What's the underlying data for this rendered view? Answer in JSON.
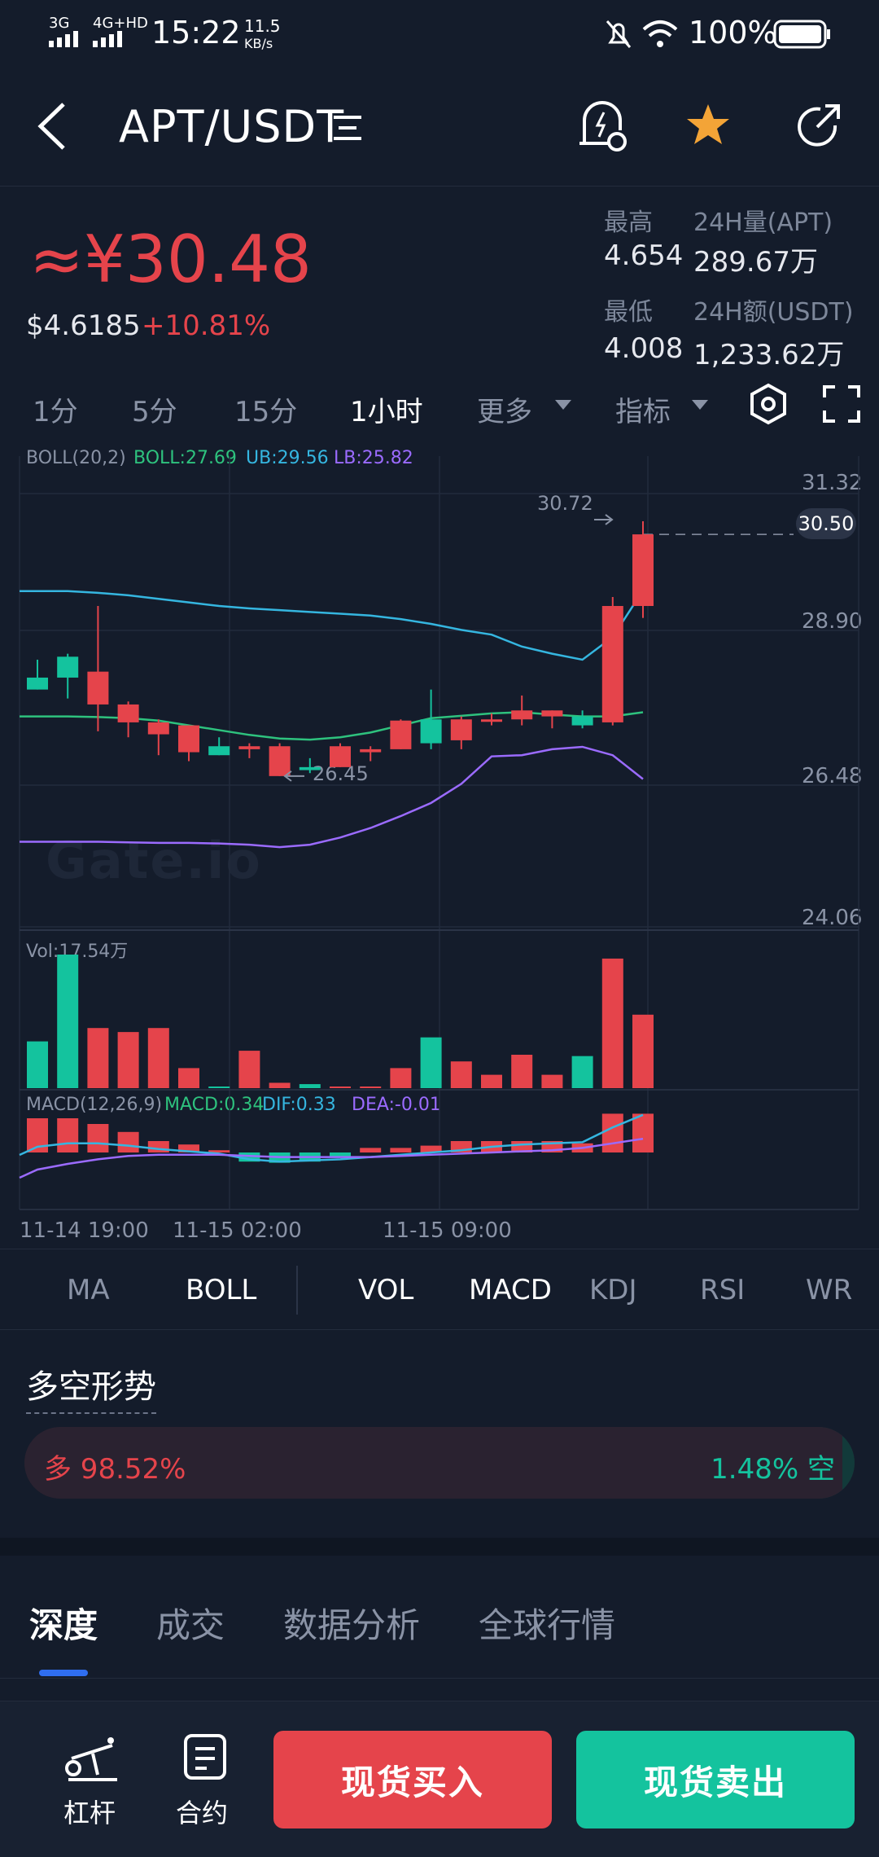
{
  "status_bar": {
    "network1": "3G",
    "network2": "4G+HD",
    "time": "15:22",
    "speed_value": "11.5",
    "speed_unit": "KB/s",
    "battery": "100%"
  },
  "header": {
    "title": "APT/USDT",
    "icons": [
      "back-icon",
      "menu-lines-icon",
      "price-alert-icon",
      "star-icon",
      "share-icon"
    ]
  },
  "price": {
    "cny": "≈¥30.48",
    "usd": "$4.6185",
    "change": "+10.81%",
    "high_label": "最高",
    "high_value": "4.654",
    "low_label": "最低",
    "low_value": "4.008",
    "vol_label": "24H量(APT)",
    "vol_value": "289.67万",
    "amt_label": "24H额(USDT)",
    "amt_value": "1,233.62万"
  },
  "timeframes": {
    "items": [
      "1分",
      "5分",
      "15分",
      "1小时"
    ],
    "more": "更多",
    "indicator": "指标",
    "active": "1小时"
  },
  "chart": {
    "boll_label": "BOLL(20,2)",
    "boll_mid": "BOLL:27.69",
    "boll_ub": "UB:29.56",
    "boll_lb": "LB:25.82",
    "y_ticks": [
      "31.32",
      "28.90",
      "26.48",
      "24.06"
    ],
    "current_price": "30.50",
    "high_marker": "30.72",
    "low_marker": "26.45",
    "watermark": "Gate.io",
    "vol_label": "Vol:17.54万",
    "macd_label": "MACD(12,26,9)",
    "macd_val": "MACD:0.34",
    "dif_val": "DIF:0.33",
    "dea_val": "DEA:-0.01",
    "x_ticks": [
      "11-14 19:00",
      "11-15 02:00",
      "11-15 09:00"
    ]
  },
  "indicators": {
    "main": [
      "MA",
      "BOLL"
    ],
    "sub": [
      "VOL",
      "MACD",
      "KDJ",
      "RSI",
      "WR"
    ]
  },
  "sentiment": {
    "title": "多空形势",
    "long_label": "多 98.52%",
    "short_label": "1.48% 空",
    "long_pct": 98.52
  },
  "tabs": [
    "深度",
    "成交",
    "数据分析",
    "全球行情"
  ],
  "bottom": {
    "leverage": "杠杆",
    "contract": "合约",
    "buy": "现货买入",
    "sell": "现货卖出"
  },
  "colors": {
    "up": "#e5444b",
    "down": "#14c39e",
    "ub": "#35b6e0",
    "mid": "#2ec27e",
    "lb": "#9b6bff",
    "bg": "#141c2b"
  },
  "chart_data": {
    "type": "candlestick",
    "y_axis_ticks": [
      31.32,
      28.9,
      26.48,
      24.06
    ],
    "ylim": [
      24.06,
      31.32
    ],
    "candles": [
      {
        "o": 28.1,
        "h": 28.4,
        "l": 27.9,
        "c": 27.9
      },
      {
        "o": 28.45,
        "h": 28.5,
        "l": 27.75,
        "c": 28.1
      },
      {
        "o": 27.65,
        "h": 29.3,
        "l": 27.2,
        "c": 28.2
      },
      {
        "o": 27.35,
        "h": 27.7,
        "l": 27.1,
        "c": 27.65
      },
      {
        "o": 27.15,
        "h": 27.4,
        "l": 26.8,
        "c": 27.35
      },
      {
        "o": 26.85,
        "h": 27.3,
        "l": 26.7,
        "c": 27.3
      },
      {
        "o": 26.95,
        "h": 27.1,
        "l": 26.8,
        "c": 26.8
      },
      {
        "o": 26.9,
        "h": 27.0,
        "l": 26.75,
        "c": 26.95
      },
      {
        "o": 26.45,
        "h": 27.0,
        "l": 26.45,
        "c": 26.95
      },
      {
        "o": 26.6,
        "h": 26.75,
        "l": 26.5,
        "c": 26.55
      },
      {
        "o": 26.6,
        "h": 27.0,
        "l": 26.6,
        "c": 26.95
      },
      {
        "o": 26.85,
        "h": 26.95,
        "l": 26.7,
        "c": 26.9
      },
      {
        "o": 26.9,
        "h": 27.4,
        "l": 26.9,
        "c": 27.38
      },
      {
        "o": 27.4,
        "h": 27.9,
        "l": 26.9,
        "c": 27.0
      },
      {
        "o": 27.05,
        "h": 27.45,
        "l": 26.9,
        "c": 27.4
      },
      {
        "o": 27.4,
        "h": 27.5,
        "l": 27.3,
        "c": 27.4
      },
      {
        "o": 27.4,
        "h": 27.8,
        "l": 27.3,
        "c": 27.55
      },
      {
        "o": 27.45,
        "h": 27.55,
        "l": 27.25,
        "c": 27.55
      },
      {
        "o": 27.45,
        "h": 27.55,
        "l": 27.25,
        "c": 27.3
      },
      {
        "o": 27.35,
        "h": 29.45,
        "l": 27.3,
        "c": 29.3
      },
      {
        "o": 29.3,
        "h": 30.72,
        "l": 29.1,
        "c": 30.5
      }
    ],
    "volumes": [
      0.35,
      1.0,
      0.45,
      0.42,
      0.45,
      0.15,
      0.01,
      0.28,
      0.04,
      0.03,
      0.0,
      0.0,
      0.15,
      0.38,
      0.2,
      0.1,
      0.25,
      0.1,
      0.24,
      0.97,
      0.55
    ],
    "macd": [
      0.3,
      0.3,
      0.25,
      0.18,
      0.1,
      0.07,
      0.02,
      -0.08,
      -0.09,
      -0.08,
      -0.04,
      0.04,
      0.04,
      0.06,
      0.1,
      0.1,
      0.1,
      0.1,
      0.08,
      0.34,
      0.34
    ]
  }
}
